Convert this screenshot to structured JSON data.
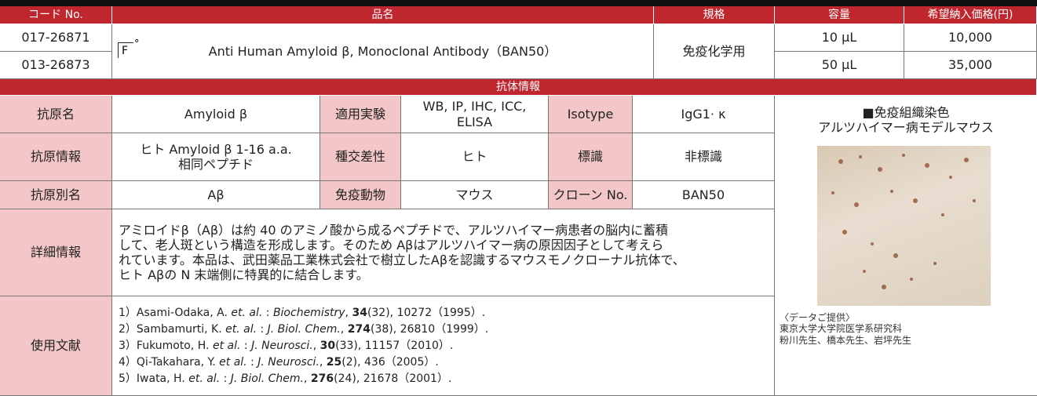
{
  "header": {
    "columns": [
      "コード No.",
      "品名",
      "規格",
      "容量",
      "希望納入価格(円)"
    ]
  },
  "products": [
    {
      "code": "017-26871",
      "volume": "10 μL",
      "price": "10,000"
    },
    {
      "code": "013-26873",
      "volume": "50 μL",
      "price": "35,000"
    }
  ],
  "product_name": "Anti Human Amyloid β, Monoclonal Antibody（BAN50）",
  "icon": {
    "letter": "F",
    "superscript": "°"
  },
  "grade": "免疫化学用",
  "section_title": "抗体情報",
  "info": {
    "rows": [
      [
        "抗原名",
        [
          "Amyloid β"
        ],
        "適用実験",
        [
          "WB, IP, IHC, ICC,",
          "ELISA"
        ],
        "Isotype",
        [
          "IgG1· κ"
        ]
      ],
      [
        "抗原情報",
        [
          "ヒト Amyloid β 1-16 a.a.",
          "相同ペプチド"
        ],
        "種交差性",
        [
          "ヒト"
        ],
        "標識",
        [
          "非標識"
        ]
      ],
      [
        "抗原別名",
        [
          "Aβ"
        ],
        "免疫動物",
        [
          "マウス"
        ],
        "クローン No.",
        [
          "BAN50"
        ]
      ]
    ]
  },
  "details": {
    "label": "詳細情報",
    "lines": [
      "アミロイドβ（Aβ）は約 40 のアミノ酸から成るペプチドで、アルツハイマー病患者の脳内に蓄積",
      "して、老人斑という構造を形成します。そのため Aβはアルツハイマー病の原因因子として考えら",
      "れています。本品は、武田薬品工業株式会社で樹立したAβを認識するマウスモノクローナル抗体で、",
      "ヒト Aβの N 末端側に特異的に結合します。"
    ]
  },
  "references": {
    "label": "使用文献",
    "items": [
      [
        {
          "text": "1）Asami-Odaka, A. "
        },
        {
          "text": "et. al.",
          "style": "italic"
        },
        {
          "text": " : "
        },
        {
          "text": "Biochemistry",
          "style": "italic"
        },
        {
          "text": ", "
        },
        {
          "text": "34",
          "style": "bold"
        },
        {
          "text": "(32), 10272（1995）."
        }
      ],
      [
        {
          "text": "2）Sambamurti, K. "
        },
        {
          "text": "et. al.",
          "style": "italic"
        },
        {
          "text": " : "
        },
        {
          "text": "J. Biol. Chem.",
          "style": "italic"
        },
        {
          "text": ", "
        },
        {
          "text": "274",
          "style": "bold"
        },
        {
          "text": "(38), 26810（1999）."
        }
      ],
      [
        {
          "text": "3）Fukumoto, H. "
        },
        {
          "text": "et al.",
          "style": "italic"
        },
        {
          "text": " : "
        },
        {
          "text": "J. Neurosci.",
          "style": "italic"
        },
        {
          "text": ", "
        },
        {
          "text": "30",
          "style": "bold"
        },
        {
          "text": "(33), 11157（2010）."
        }
      ],
      [
        {
          "text": "4）Qi-Takahara, Y. "
        },
        {
          "text": "et al.",
          "style": "italic"
        },
        {
          "text": " : "
        },
        {
          "text": "J. Neurosci.",
          "style": "italic"
        },
        {
          "text": ", "
        },
        {
          "text": "25",
          "style": "bold"
        },
        {
          "text": "(2), 436（2005）."
        }
      ],
      [
        {
          "text": "5）Iwata, H. "
        },
        {
          "text": "et. al.",
          "style": "italic"
        },
        {
          "text": " : "
        },
        {
          "text": "J. Biol. Chem.",
          "style": "italic"
        },
        {
          "text": ", "
        },
        {
          "text": "276",
          "style": "bold"
        },
        {
          "text": "(24), 21678（2001）."
        }
      ]
    ]
  },
  "image_panel": {
    "title": [
      "■免疫組織染色",
      "アルツハイマー病モデルマウス"
    ],
    "credit": [
      "〈データご提供〉",
      "東京大学大学院医学系研究科",
      "粉川先生、橋本先生、岩坪先生"
    ]
  }
}
